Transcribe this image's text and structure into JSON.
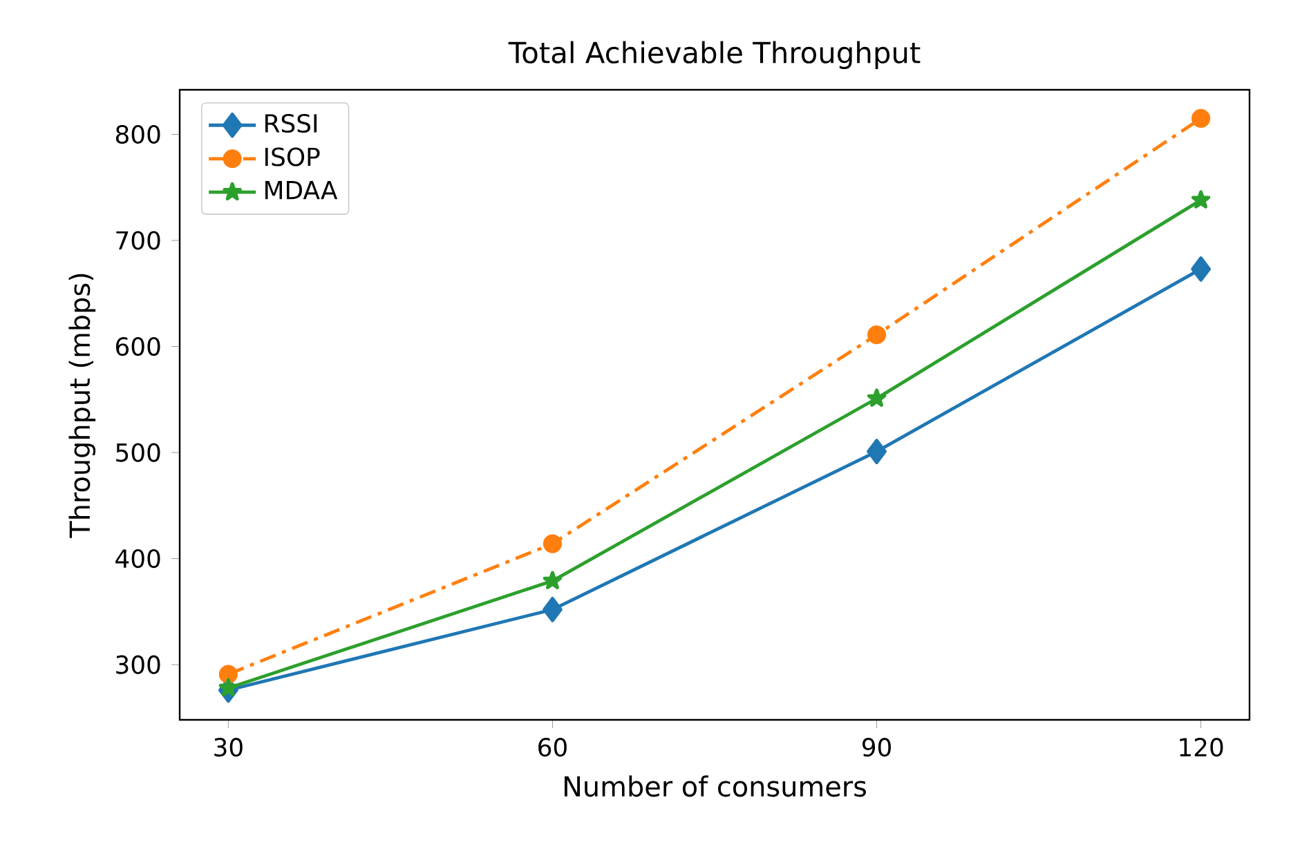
{
  "chart_data": {
    "type": "line",
    "title": "Total Achievable Throughput",
    "xlabel": "Number of consumers",
    "ylabel": "Throughput (mbps)",
    "x": [
      30,
      60,
      90,
      120
    ],
    "series": [
      {
        "name": "RSSI",
        "color": "#1f77b4",
        "values": [
          276,
          352,
          501,
          673
        ],
        "marker": "diamond",
        "line_style": "solid"
      },
      {
        "name": "ISOP",
        "color": "#ff7f0e",
        "values": [
          291,
          414,
          611,
          815
        ],
        "marker": "circle",
        "line_style": "dashdot"
      },
      {
        "name": "MDAA",
        "color": "#2ca02c",
        "values": [
          278,
          379,
          551,
          738
        ],
        "marker": "star",
        "line_style": "solid"
      }
    ],
    "xlim": [
      25.5,
      124.5
    ],
    "xticks": [
      30,
      60,
      90,
      120
    ],
    "ylim": [
      248,
      842
    ],
    "yticks": [
      300,
      400,
      500,
      600,
      700,
      800
    ],
    "grid": false,
    "legend": "top left"
  }
}
